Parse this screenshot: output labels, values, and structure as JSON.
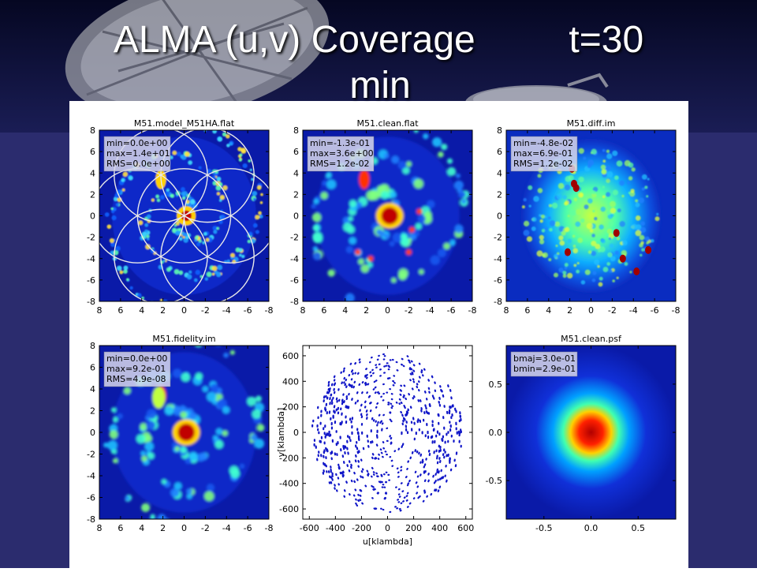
{
  "slide": {
    "title": "ALMA (u,v) Coverage",
    "time_label": "t=30",
    "time_unit": "min",
    "background_color": "#2b2c6e",
    "header_color": "#0a0d3a"
  },
  "chart_data": [
    {
      "type": "heatmap",
      "title": "M51.model_M51HA.flat",
      "xlim": [
        8,
        -8
      ],
      "ylim": [
        -8,
        8
      ],
      "xticks": [
        8,
        6,
        4,
        2,
        0,
        -2,
        -4,
        -6,
        -8
      ],
      "yticks": [
        8,
        6,
        4,
        2,
        0,
        -2,
        -4,
        -6,
        -8
      ],
      "stats": [
        "min=0.0e+00",
        "max=1.4e+01",
        "RMS=0.0e+00"
      ],
      "colormap": "jet",
      "pointing_circles": [
        [
          0,
          0
        ],
        [
          2.2,
          3.8
        ],
        [
          -2.2,
          3.8
        ],
        [
          4.4,
          0
        ],
        [
          -4.4,
          0
        ],
        [
          2.2,
          -3.8
        ],
        [
          -2.2,
          -3.8
        ]
      ],
      "circle_radius": 4.4
    },
    {
      "type": "heatmap",
      "title": "M51.clean.flat",
      "xlim": [
        8,
        -8
      ],
      "ylim": [
        -8,
        8
      ],
      "xticks": [
        8,
        6,
        4,
        2,
        0,
        -2,
        -4,
        -6,
        -8
      ],
      "yticks": [
        8,
        6,
        4,
        2,
        0,
        -2,
        -4,
        -6,
        -8
      ],
      "stats": [
        "min=-1.3e-01",
        "max=3.6e+00",
        "RMS=1.2e-02"
      ],
      "colormap": "jet"
    },
    {
      "type": "heatmap",
      "title": "M51.diff.im",
      "xlim": [
        8,
        -8
      ],
      "ylim": [
        -8,
        8
      ],
      "xticks": [
        8,
        6,
        4,
        2,
        0,
        -2,
        -4,
        -6,
        -8
      ],
      "yticks": [
        8,
        6,
        4,
        2,
        0,
        -2,
        -4,
        -6,
        -8
      ],
      "stats": [
        "min=-4.8e-02",
        "max=6.9e-01",
        "RMS=1.2e-02"
      ],
      "colormap": "jet"
    },
    {
      "type": "heatmap",
      "title": "M51.fidelity.im",
      "xlim": [
        8,
        -8
      ],
      "ylim": [
        -8,
        8
      ],
      "xticks": [
        8,
        6,
        4,
        2,
        0,
        -2,
        -4,
        -6,
        -8
      ],
      "yticks": [
        8,
        6,
        4,
        2,
        0,
        -2,
        -4,
        -6,
        -8
      ],
      "stats": [
        "min=0.0e+00",
        "max=9.2e-01",
        "RMS=4.9e-08"
      ],
      "colormap": "jet"
    },
    {
      "type": "scatter",
      "title": "",
      "xlabel": "u[klambda]",
      "ylabel": "v[klambda]",
      "xlim": [
        -650,
        650
      ],
      "ylim": [
        -680,
        680
      ],
      "xticks": [
        -600,
        -400,
        -200,
        0,
        200,
        400,
        600
      ],
      "yticks": [
        600,
        400,
        200,
        0,
        -200,
        -400,
        -600
      ],
      "color": "#1016c8",
      "description_of_marks": "short radial track segments filling disc of radius ~600 klambda"
    },
    {
      "type": "heatmap",
      "title": "M51.clean.psf",
      "xlim": [
        -0.9,
        0.9
      ],
      "ylim": [
        -0.9,
        0.9
      ],
      "xticks": [
        -0.5,
        0.0,
        0.5
      ],
      "yticks": [
        0.5,
        0.0,
        -0.5
      ],
      "stats": [
        "bmaj=3.0e-01",
        "bmin=2.9e-01"
      ],
      "colormap": "jet"
    }
  ]
}
